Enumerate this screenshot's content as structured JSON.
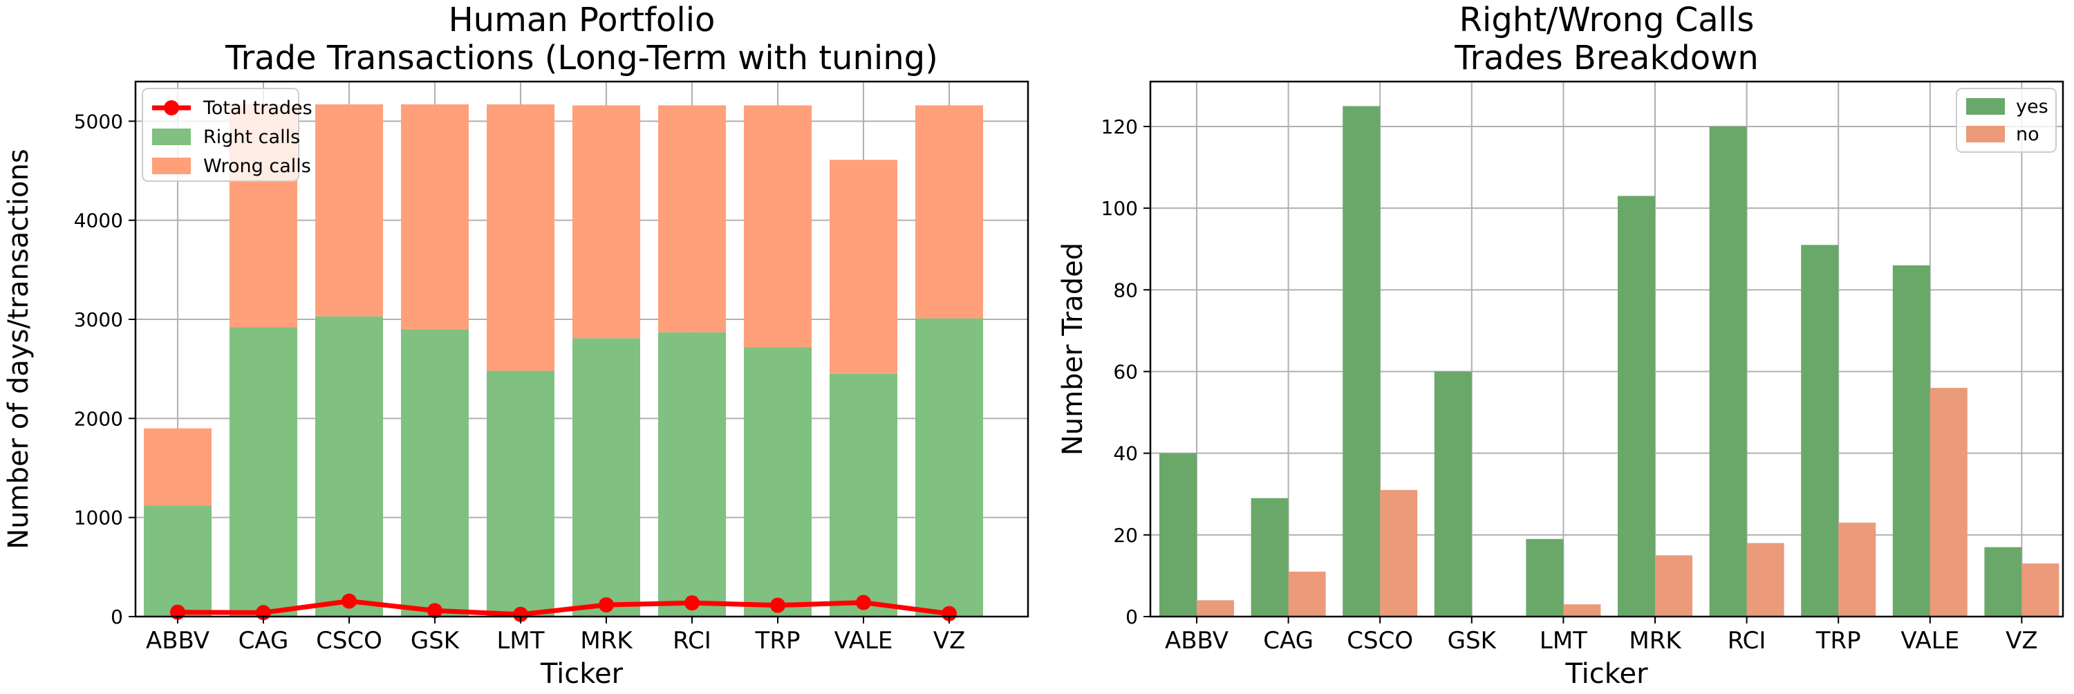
{
  "chart_data": [
    {
      "type": "bar",
      "stacked": true,
      "title": "Human Portfolio\nTrade Transactions (Long-Term with tuning)",
      "xlabel": "Ticker",
      "ylabel": "Number of days/transactions",
      "categories": [
        "ABBV",
        "CAG",
        "CSCO",
        "GSK",
        "LMT",
        "MRK",
        "RCI",
        "TRP",
        "VALE",
        "VZ"
      ],
      "ylim": [
        0,
        5400
      ],
      "yticks": [
        0,
        1000,
        2000,
        3000,
        4000,
        5000
      ],
      "grid": true,
      "legend": "top-left",
      "series": [
        {
          "name": "Right calls",
          "kind": "bar",
          "color": "#80c080",
          "values": [
            1120,
            2920,
            3030,
            2900,
            2480,
            2810,
            2870,
            2720,
            2450,
            3010
          ]
        },
        {
          "name": "Wrong calls",
          "kind": "bar",
          "color": "#ffa07a",
          "values": [
            780,
            2250,
            2140,
            2270,
            2690,
            2350,
            2290,
            2440,
            2160,
            2150
          ]
        },
        {
          "name": "Total trades",
          "kind": "line",
          "color": "#ff0000",
          "values": [
            44,
            40,
            156,
            60,
            22,
            118,
            138,
            114,
            142,
            30
          ]
        }
      ]
    },
    {
      "type": "bar",
      "grouped": true,
      "title": "Right/Wrong Calls\nTrades Breakdown",
      "xlabel": "Ticker",
      "ylabel": "Number Traded",
      "categories": [
        "ABBV",
        "CAG",
        "CSCO",
        "GSK",
        "LMT",
        "MRK",
        "RCI",
        "TRP",
        "VALE",
        "VZ"
      ],
      "ylim": [
        0,
        131
      ],
      "yticks": [
        0,
        20,
        40,
        60,
        80,
        100,
        120
      ],
      "grid": true,
      "legend": "top-right",
      "series": [
        {
          "name": "yes",
          "color": "#6aa86a",
          "values": [
            40,
            29,
            125,
            60,
            19,
            103,
            120,
            91,
            86,
            17
          ]
        },
        {
          "name": "no",
          "color": "#eb9a7a",
          "values": [
            4,
            11,
            31,
            0,
            3,
            15,
            18,
            23,
            56,
            13
          ]
        }
      ]
    }
  ]
}
